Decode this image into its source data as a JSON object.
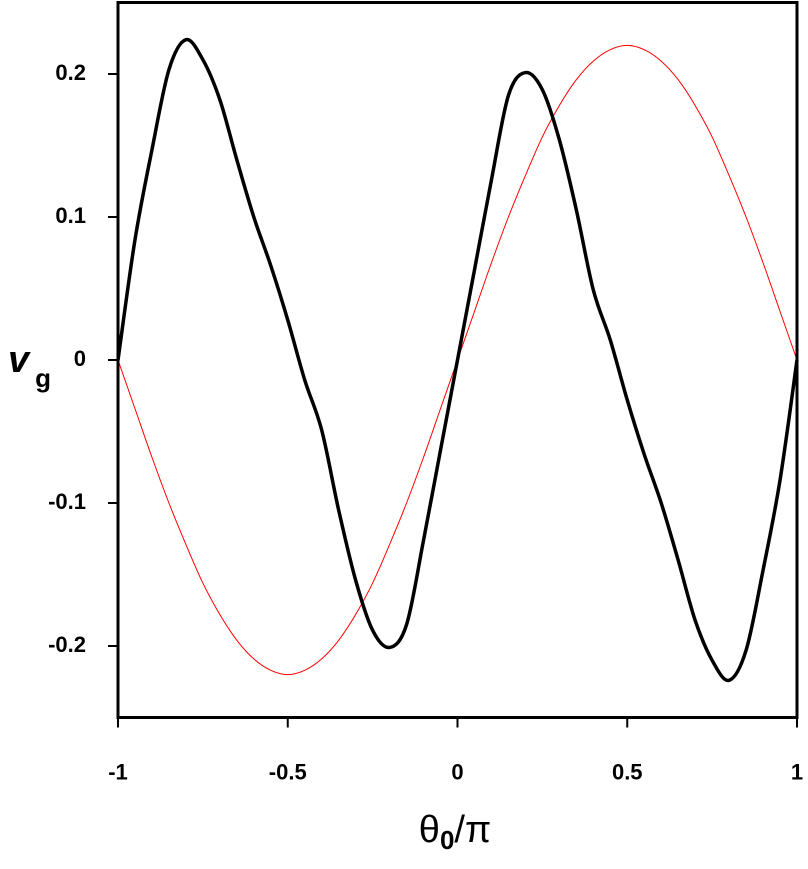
{
  "chart_data": {
    "type": "line",
    "x_label": {
      "main": "θ",
      "sub": "0",
      "tail": "/π"
    },
    "y_label": {
      "main": "v",
      "sub": "g"
    },
    "x": [
      -1,
      -0.95,
      -0.9,
      -0.85,
      -0.8,
      -0.75,
      -0.7,
      -0.65,
      -0.6,
      -0.55,
      -0.5,
      -0.45,
      -0.4,
      -0.35,
      -0.3,
      -0.25,
      -0.2,
      -0.15,
      -0.1,
      -0.05,
      0,
      0.05,
      0.1,
      0.15,
      0.2,
      0.25,
      0.3,
      0.35,
      0.4,
      0.45,
      0.5,
      0.55,
      0.6,
      0.65,
      0.7,
      0.75,
      0.8,
      0.85,
      0.9,
      0.95,
      1
    ],
    "series": [
      {
        "color": "#ff0000",
        "width": 1,
        "values": [
          0,
          -0.034,
          -0.068,
          -0.1,
          -0.129,
          -0.156,
          -0.178,
          -0.196,
          -0.209,
          -0.217,
          -0.22,
          -0.217,
          -0.209,
          -0.196,
          -0.178,
          -0.156,
          -0.129,
          -0.1,
          -0.068,
          -0.034,
          0,
          0.034,
          0.068,
          0.1,
          0.129,
          0.156,
          0.178,
          0.196,
          0.209,
          0.217,
          0.22,
          0.217,
          0.209,
          0.196,
          0.178,
          0.156,
          0.129,
          0.1,
          0.068,
          0.034,
          0
        ]
      },
      {
        "color": "#000000",
        "width": 3.5,
        "values": [
          0,
          0.084,
          0.147,
          0.203,
          0.224,
          0.21,
          0.182,
          0.14,
          0.1,
          0.066,
          0.028,
          -0.014,
          -0.049,
          -0.105,
          -0.154,
          -0.189,
          -0.201,
          -0.185,
          -0.126,
          -0.063,
          0,
          0.063,
          0.126,
          0.185,
          0.201,
          0.189,
          0.154,
          0.105,
          0.049,
          0.014,
          -0.028,
          -0.066,
          -0.1,
          -0.14,
          -0.182,
          -0.21,
          -0.224,
          -0.203,
          -0.147,
          -0.084,
          0
        ]
      }
    ],
    "xlim": [
      -1,
      1
    ],
    "xticks": [
      -1,
      -0.5,
      0,
      0.5,
      1
    ],
    "ylim": [
      -0.25,
      0.25
    ],
    "yticks": [
      -0.2,
      -0.1,
      0,
      0.1,
      0.2
    ]
  }
}
